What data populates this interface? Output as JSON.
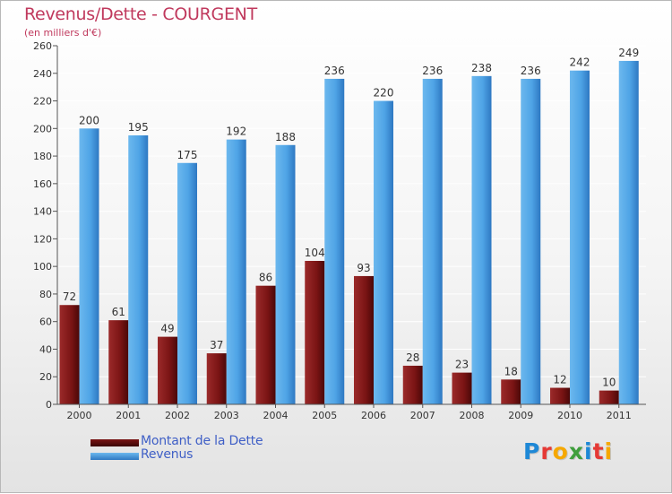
{
  "title": "Revenus/Dette - COURGENT",
  "subtitle": "(en milliers d'€)",
  "colors": {
    "debt": "#8b1a1a",
    "revenue": "#4fa4e6",
    "title": "#c0395d",
    "legend_text": "#3f5fc6"
  },
  "chart_data": {
    "type": "bar",
    "title": "Revenus/Dette - COURGENT",
    "ylabel": "(en milliers d'€)",
    "categories": [
      "2000",
      "2001",
      "2002",
      "2003",
      "2004",
      "2005",
      "2006",
      "2007",
      "2008",
      "2009",
      "2010",
      "2011"
    ],
    "series": [
      {
        "name": "Montant de la Dette",
        "values": [
          72,
          61,
          49,
          37,
          86,
          104,
          93,
          28,
          23,
          18,
          12,
          10
        ]
      },
      {
        "name": "Revenus",
        "values": [
          200,
          195,
          175,
          192,
          188,
          236,
          220,
          236,
          238,
          236,
          242,
          249
        ]
      }
    ],
    "ylim": [
      0,
      260
    ],
    "yticks": [
      0,
      20,
      40,
      60,
      80,
      100,
      120,
      140,
      160,
      180,
      200,
      220,
      240,
      260
    ],
    "grid": true,
    "legend_position": "bottom-left"
  },
  "legend": [
    {
      "label": "Montant de la Dette",
      "icon": "dark-red-bar"
    },
    {
      "label": "Revenus",
      "icon": "blue-bar"
    }
  ],
  "logo": {
    "letters": [
      "P",
      "r",
      "o",
      "x",
      "i",
      "t",
      "i"
    ],
    "colors": [
      "#1e88d6",
      "#e53935",
      "#f6a800",
      "#3f9e3c",
      "#1e88d6",
      "#e53935",
      "#f6a800"
    ]
  }
}
